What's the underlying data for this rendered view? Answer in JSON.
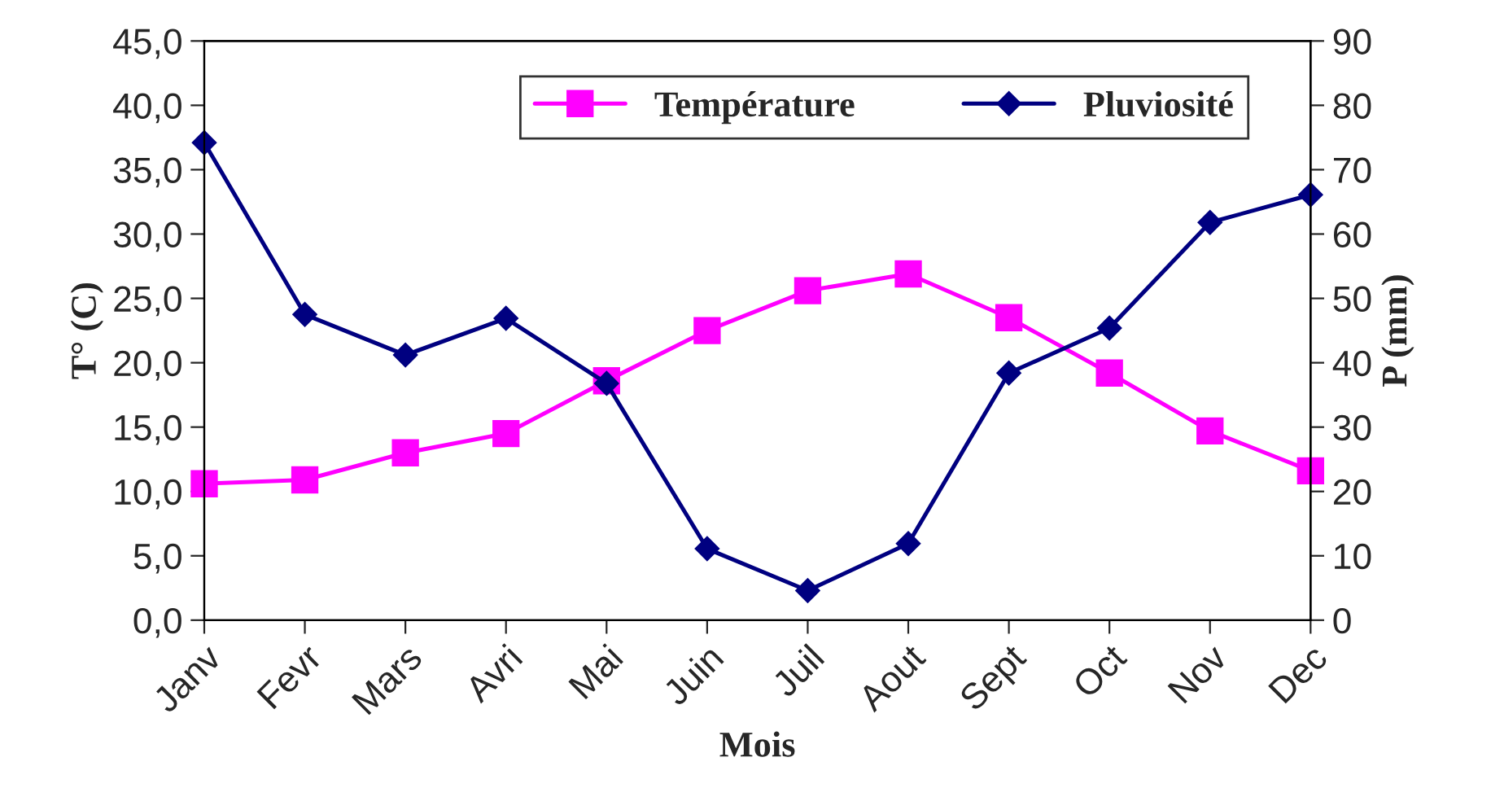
{
  "chart_data": {
    "type": "line",
    "xlabel": "Mois",
    "ylabel": "T° (C)",
    "y2label": "P (mm)",
    "categories": [
      "Janv",
      "Fevr",
      "Mars",
      "Avri",
      "Mai",
      "Juin",
      "Juil",
      "Aout",
      "Sept",
      "Oct",
      "Nov",
      "Dec"
    ],
    "series": [
      {
        "name": "Température",
        "color": "#ff00ff",
        "marker": "square",
        "values": [
          10.6,
          10.9,
          13.0,
          14.5,
          18.6,
          22.5,
          25.6,
          26.9,
          23.5,
          19.2,
          14.7,
          11.6
        ]
      },
      {
        "name": "Pluviosité",
        "color": "#000080",
        "marker": "diamond",
        "axis": "y2",
        "values": [
          74.2,
          47.5,
          41.2,
          46.9,
          36.8,
          11.1,
          4.6,
          11.9,
          38.4,
          45.4,
          61.8,
          66.1
        ]
      }
    ],
    "ylim": [
      0,
      45
    ],
    "yticks": [
      {
        "value": 0,
        "label": "0,0"
      },
      {
        "value": 5,
        "label": "5,0"
      },
      {
        "value": 10,
        "label": "10,0"
      },
      {
        "value": 15,
        "label": "15,0"
      },
      {
        "value": 20,
        "label": "20,0"
      },
      {
        "value": 25,
        "label": "25,0"
      },
      {
        "value": 30,
        "label": "30,0"
      },
      {
        "value": 35,
        "label": "35,0"
      },
      {
        "value": 40,
        "label": "40,0"
      },
      {
        "value": 45,
        "label": "45,0"
      }
    ],
    "y2lim": [
      0,
      90
    ],
    "y2ticks": [
      0,
      10,
      20,
      30,
      40,
      50,
      60,
      70,
      80,
      90
    ],
    "legend": "top right",
    "grid": false,
    "line_style": "solid"
  }
}
